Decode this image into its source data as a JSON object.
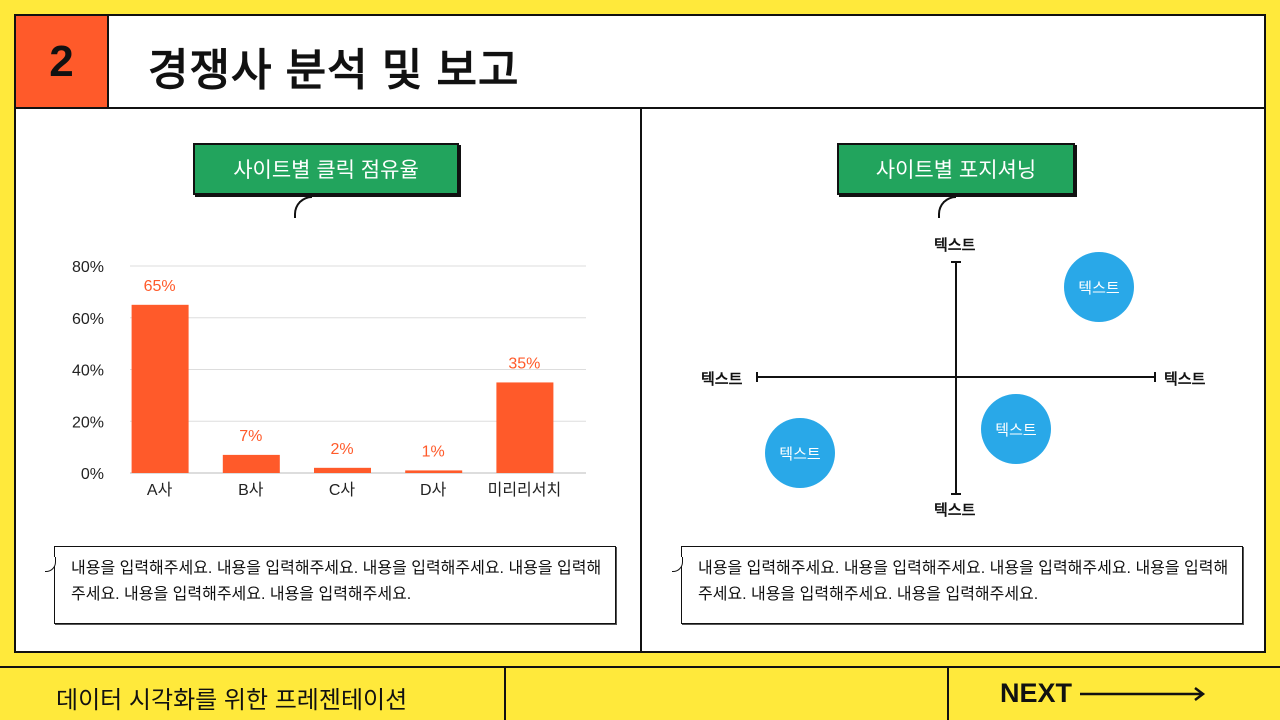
{
  "header": {
    "number": "2",
    "title": "경쟁사 분석 및 보고"
  },
  "left": {
    "tag": "사이트별 클릭 점유율",
    "note": "내용을 입력해주세요. 내용을 입력해주세요. 내용을 입력해주세요. 내용을 입력해주세요. 내용을 입력해주세요. 내용을 입력해주세요."
  },
  "right": {
    "tag": "사이트별 포지셔닝",
    "note": "내용을 입력해주세요. 내용을 입력해주세요. 내용을 입력해주세요. 내용을 입력해주세요. 내용을 입력해주세요. 내용을 입력해주세요.",
    "axis": {
      "top": "텍스트",
      "bottom": "텍스트",
      "left": "텍스트",
      "right": "텍스트"
    },
    "bubbles": [
      "텍스트",
      "텍스트",
      "텍스트"
    ]
  },
  "chart_data": {
    "type": "bar",
    "categories": [
      "A사",
      "B사",
      "C사",
      "D사",
      "미리리서치"
    ],
    "values": [
      65,
      7,
      2,
      1,
      35
    ],
    "data_labels": [
      "65%",
      "7%",
      "2%",
      "1%",
      "35%"
    ],
    "yticks": [
      "0%",
      "20%",
      "40%",
      "60%",
      "80%"
    ],
    "ylim": [
      0,
      80
    ],
    "grid": true,
    "colors": {
      "bar": "#FF5A2A",
      "label": "#FF5A2A"
    }
  },
  "footer": {
    "text": "데이터 시각화를 위한 프레젠테이션",
    "next": "NEXT"
  },
  "colors": {
    "background": "#FFE93B",
    "accent": "#FF5A2A",
    "tag": "#22A45D",
    "bubble": "#29A8E8"
  }
}
